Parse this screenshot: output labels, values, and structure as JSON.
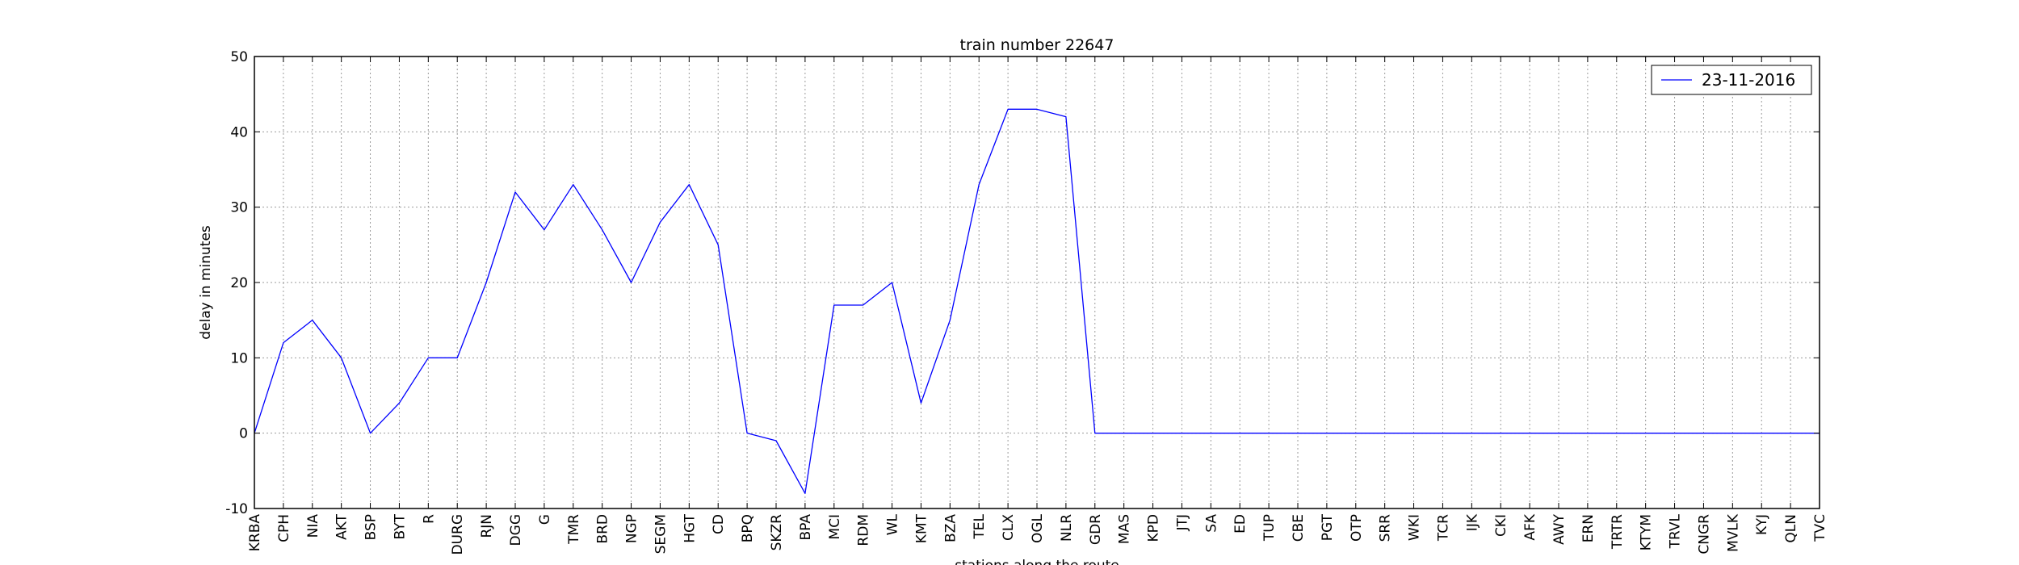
{
  "chart_data": {
    "type": "line",
    "title": "train number 22647",
    "xlabel": "stations along the route",
    "ylabel": "delay in minutes",
    "ylim": [
      -10,
      50
    ],
    "yticks": [
      -10,
      0,
      10,
      20,
      30,
      40,
      50
    ],
    "grid": true,
    "legend_position": "top-right",
    "categories": [
      "KRBA",
      "CPH",
      "NIA",
      "AKT",
      "BSP",
      "BYT",
      "R",
      "DURG",
      "RJN",
      "DGG",
      "G",
      "TMR",
      "BRD",
      "NGP",
      "SEGM",
      "HGT",
      "CD",
      "BPQ",
      "SKZR",
      "BPA",
      "MCI",
      "RDM",
      "WL",
      "KMT",
      "BZA",
      "TEL",
      "CLX",
      "OGL",
      "NLR",
      "GDR",
      "MAS",
      "KPD",
      "JTJ",
      "SA",
      "ED",
      "TUP",
      "CBE",
      "PGT",
      "OTP",
      "SRR",
      "WKI",
      "TCR",
      "IJK",
      "CKI",
      "AFK",
      "AWY",
      "ERN",
      "TRTR",
      "KTYM",
      "TRVL",
      "CNGR",
      "MVLK",
      "KYJ",
      "QLN",
      "TVC"
    ],
    "series": [
      {
        "name": "23-11-2016",
        "color": "#0000ff",
        "values": [
          0,
          12,
          15,
          10,
          0,
          4,
          10,
          10,
          20,
          32,
          27,
          33,
          27,
          20,
          28,
          33,
          25,
          0,
          -1,
          -8,
          17,
          17,
          20,
          4,
          15,
          33,
          43,
          43,
          42,
          0,
          0,
          0,
          0,
          0,
          0,
          0,
          0,
          0,
          0,
          0,
          0,
          0,
          0,
          0,
          0,
          0,
          0,
          0,
          0,
          0,
          0,
          0,
          0,
          0,
          0
        ]
      }
    ]
  }
}
